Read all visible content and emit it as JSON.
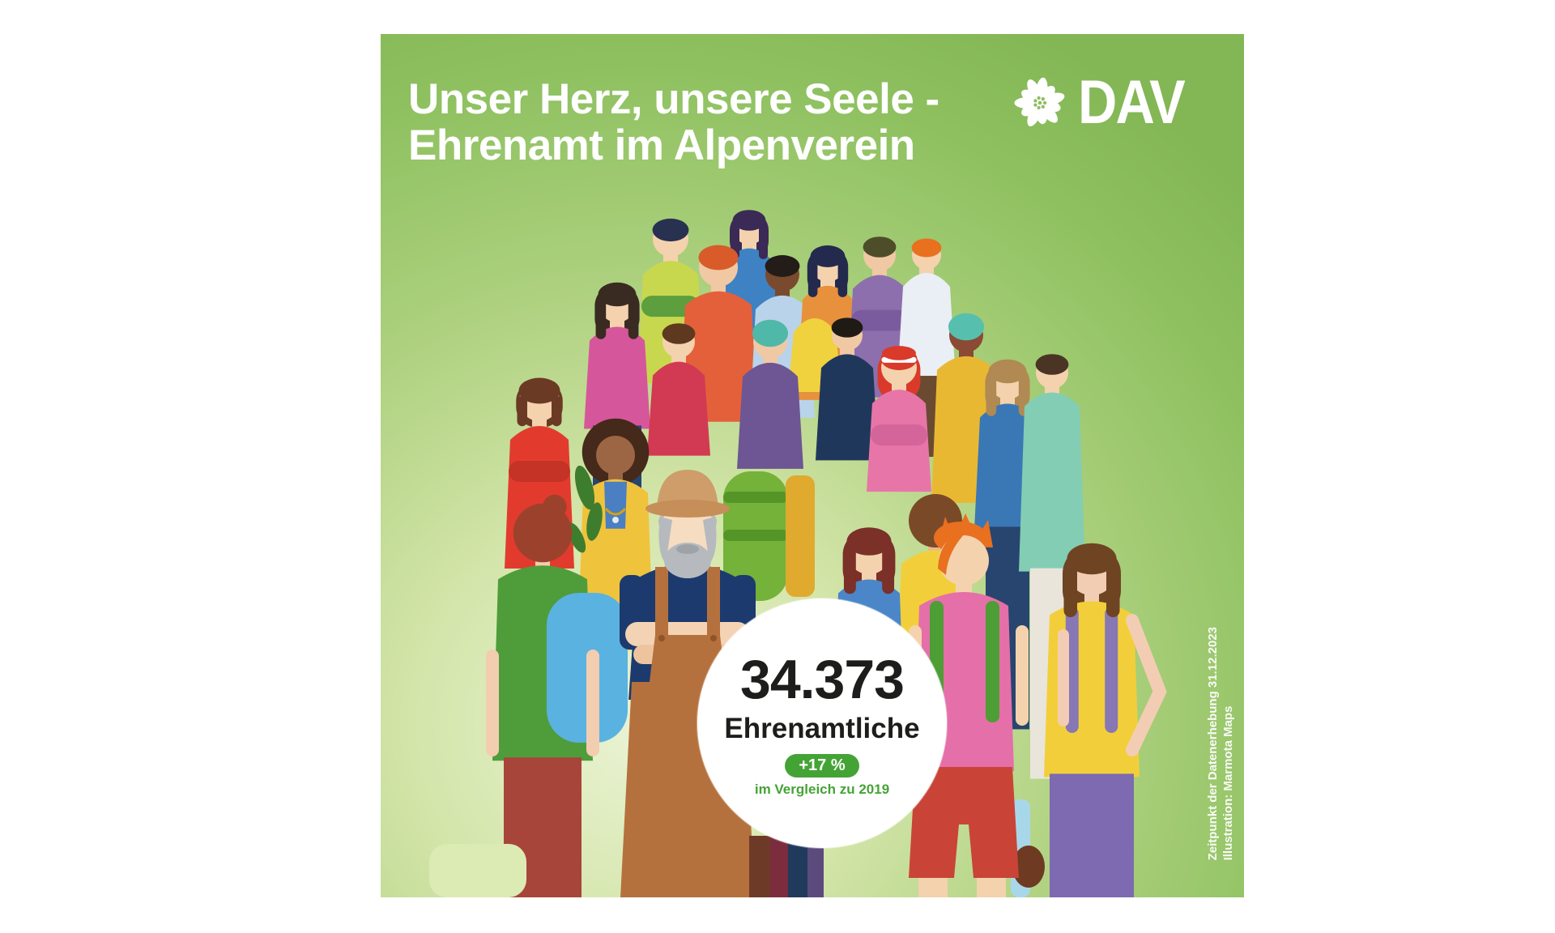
{
  "poster": {
    "title_line1": "Unser Herz, unsere Seele -",
    "title_line2": "Ehrenamt im Alpenverein",
    "logo_text": "DAV",
    "stat": {
      "number": "34.373",
      "label": "Ehrenamtliche",
      "badge": "+17 %",
      "comparison": "im Vergleich zu 2019"
    },
    "credits": {
      "line1": "Zeitpunkt der Datenerhebung 31.12.2023",
      "line2": "Illustration: Marmota Maps"
    },
    "colors": {
      "accent_green": "#44a335",
      "stat_text": "#1d1d1b",
      "badge_text": "#ffffff",
      "background_edge": "#83b654",
      "background_center": "#eaf3d4",
      "title_text": "#ffffff"
    }
  }
}
